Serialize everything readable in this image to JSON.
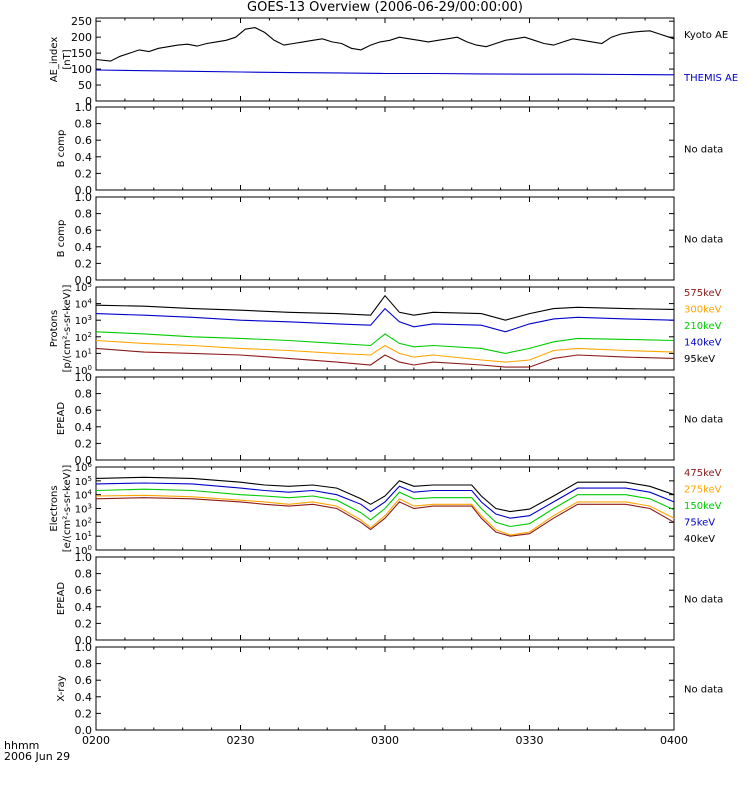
{
  "title": "GOES-13 Overview (2006-06-29/00:00:00)",
  "footer": {
    "line1": "hhmm",
    "line2": "2006 Jun 29"
  },
  "x_axis": {
    "range": [
      0,
      120
    ],
    "ticks": [
      {
        "value": 0,
        "label": "0200"
      },
      {
        "value": 30,
        "label": "0230"
      },
      {
        "value": 60,
        "label": "0300"
      },
      {
        "value": 90,
        "label": "0330"
      },
      {
        "value": 120,
        "label": "0400"
      }
    ]
  },
  "chart_data": [
    {
      "type": "line",
      "ylabel": "AE_index\n[nT]",
      "ylim": [
        0,
        260
      ],
      "yticks": [
        0,
        50,
        100,
        150,
        200,
        250
      ],
      "ytick_labels": [
        "0",
        "50",
        "100",
        "150",
        "200",
        "250"
      ],
      "series": [
        {
          "name": "Kyoto AE",
          "color": "#000000",
          "x": [
            0,
            3,
            5,
            7,
            9,
            11,
            13,
            15,
            17,
            19,
            21,
            23,
            25,
            27,
            29,
            31,
            33,
            35,
            37,
            39,
            41,
            43,
            45,
            47,
            49,
            51,
            53,
            55,
            57,
            59,
            61,
            63,
            65,
            67,
            69,
            71,
            73,
            75,
            77,
            79,
            81,
            83,
            85,
            87,
            89,
            91,
            93,
            95,
            97,
            99,
            101,
            103,
            105,
            107,
            109,
            111,
            113,
            115,
            117,
            119,
            120
          ],
          "y": [
            130,
            125,
            140,
            150,
            160,
            155,
            165,
            170,
            175,
            178,
            172,
            180,
            185,
            190,
            200,
            225,
            230,
            215,
            190,
            175,
            180,
            185,
            190,
            195,
            185,
            180,
            165,
            160,
            175,
            185,
            190,
            200,
            195,
            190,
            185,
            190,
            195,
            200,
            185,
            175,
            170,
            180,
            190,
            195,
            200,
            190,
            180,
            175,
            185,
            195,
            190,
            185,
            180,
            200,
            210,
            215,
            218,
            220,
            210,
            200,
            195
          ]
        },
        {
          "name": "THEMIS AE",
          "color": "#0000cc",
          "x": [
            0,
            10,
            20,
            30,
            40,
            50,
            60,
            70,
            80,
            90,
            100,
            110,
            120
          ],
          "y": [
            97,
            95,
            93,
            91,
            89,
            88,
            86,
            86,
            85,
            84,
            84,
            83,
            82
          ]
        }
      ]
    },
    {
      "type": "line",
      "ylabel": "B comp",
      "ylim": [
        0,
        1
      ],
      "yticks": [
        0,
        0.2,
        0.4,
        0.6,
        0.8,
        1.0
      ],
      "ytick_labels": [
        "0.0",
        "0.2",
        "0.4",
        "0.6",
        "0.8",
        "1.0"
      ],
      "no_data_label": "No data",
      "series": []
    },
    {
      "type": "line",
      "ylabel": "B comp",
      "ylim": [
        0,
        1
      ],
      "yticks": [
        0,
        0.2,
        0.4,
        0.6,
        0.8,
        1.0
      ],
      "ytick_labels": [
        "0.0",
        "0.2",
        "0.4",
        "0.6",
        "0.8",
        "1.0"
      ],
      "no_data_label": "No data",
      "series": []
    },
    {
      "type": "line",
      "ylabel": "Protons\n[p/(cm²-s-sr-keV)]",
      "log": true,
      "ylim": [
        1,
        100000
      ],
      "ytick_exponents": [
        0,
        1,
        2,
        3,
        4,
        5
      ],
      "series": [
        {
          "name": "575keV",
          "color": "#8b1a1a",
          "x": [
            0,
            10,
            20,
            30,
            40,
            50,
            57,
            60,
            63,
            66,
            70,
            80,
            85,
            90,
            95,
            100,
            110,
            120
          ],
          "y": [
            20,
            12,
            10,
            8,
            5,
            3,
            2,
            8,
            3,
            2,
            3,
            2,
            1.5,
            1.5,
            5,
            8,
            6,
            5
          ]
        },
        {
          "name": "300keV",
          "color": "#ffa500",
          "x": [
            0,
            10,
            20,
            30,
            40,
            50,
            57,
            60,
            63,
            66,
            70,
            80,
            85,
            90,
            95,
            100,
            110,
            120
          ],
          "y": [
            60,
            40,
            30,
            20,
            15,
            10,
            8,
            30,
            10,
            6,
            8,
            4,
            3,
            4,
            15,
            20,
            15,
            12
          ]
        },
        {
          "name": "210keV",
          "color": "#00cc00",
          "x": [
            0,
            10,
            20,
            30,
            40,
            50,
            57,
            60,
            63,
            66,
            70,
            80,
            85,
            90,
            95,
            100,
            110,
            120
          ],
          "y": [
            200,
            150,
            100,
            80,
            60,
            40,
            30,
            150,
            40,
            25,
            30,
            20,
            10,
            20,
            50,
            80,
            70,
            60
          ]
        },
        {
          "name": "140keV",
          "color": "#0000cc",
          "x": [
            0,
            10,
            20,
            30,
            40,
            50,
            57,
            60,
            63,
            66,
            70,
            80,
            85,
            90,
            95,
            100,
            110,
            120
          ],
          "y": [
            2500,
            2000,
            1500,
            1000,
            800,
            600,
            500,
            5000,
            800,
            400,
            600,
            500,
            200,
            600,
            1200,
            1500,
            1200,
            1000
          ]
        },
        {
          "name": "95keV",
          "color": "#000000",
          "x": [
            0,
            10,
            20,
            30,
            40,
            50,
            57,
            60,
            63,
            66,
            70,
            80,
            85,
            90,
            95,
            100,
            110,
            120
          ],
          "y": [
            8000,
            7000,
            5000,
            4000,
            3000,
            2500,
            2000,
            30000,
            3000,
            2000,
            3000,
            2500,
            1000,
            2500,
            5000,
            6000,
            5000,
            4500
          ]
        }
      ]
    },
    {
      "type": "line",
      "ylabel": "EPEAD",
      "ylim": [
        0,
        1
      ],
      "yticks": [
        0,
        0.2,
        0.4,
        0.6,
        0.8,
        1.0
      ],
      "ytick_labels": [
        "0.0",
        "0.2",
        "0.4",
        "0.6",
        "0.8",
        "1.0"
      ],
      "no_data_label": "No data",
      "series": []
    },
    {
      "type": "line",
      "ylabel": "Electrons\n[e/(cm²-s-sr-keV)]",
      "log": true,
      "ylim": [
        1,
        1000000
      ],
      "ytick_exponents": [
        0,
        1,
        2,
        3,
        4,
        5,
        6
      ],
      "series": [
        {
          "name": "475keV",
          "color": "#8b1a1a",
          "x": [
            0,
            10,
            20,
            30,
            35,
            40,
            45,
            50,
            55,
            57,
            60,
            63,
            66,
            70,
            78,
            80,
            83,
            86,
            90,
            95,
            100,
            110,
            115,
            120
          ],
          "y": [
            5000,
            6000,
            5000,
            3000,
            2000,
            1500,
            2000,
            1000,
            100,
            30,
            200,
            3000,
            1000,
            1500,
            1500,
            200,
            20,
            10,
            15,
            200,
            2000,
            2000,
            1000,
            100
          ]
        },
        {
          "name": "275keV",
          "color": "#ffa500",
          "x": [
            0,
            10,
            20,
            30,
            35,
            40,
            45,
            50,
            55,
            57,
            60,
            63,
            66,
            70,
            78,
            80,
            83,
            86,
            90,
            95,
            100,
            110,
            115,
            120
          ],
          "y": [
            8000,
            9000,
            7000,
            4000,
            3000,
            2000,
            3000,
            1500,
            150,
            40,
            300,
            5000,
            1500,
            2000,
            2000,
            300,
            30,
            12,
            20,
            300,
            3000,
            3000,
            1500,
            200
          ]
        },
        {
          "name": "150keV",
          "color": "#00cc00",
          "x": [
            0,
            10,
            20,
            30,
            35,
            40,
            45,
            50,
            55,
            57,
            60,
            63,
            66,
            70,
            78,
            80,
            83,
            86,
            90,
            95,
            100,
            110,
            115,
            120
          ],
          "y": [
            20000,
            25000,
            20000,
            10000,
            8000,
            6000,
            8000,
            4000,
            500,
            150,
            1000,
            15000,
            5000,
            6000,
            6000,
            1000,
            100,
            50,
            80,
            1000,
            10000,
            10000,
            5000,
            800
          ]
        },
        {
          "name": "75keV",
          "color": "#0000cc",
          "x": [
            0,
            10,
            20,
            30,
            35,
            40,
            45,
            50,
            55,
            57,
            60,
            63,
            66,
            70,
            78,
            80,
            83,
            86,
            90,
            95,
            100,
            110,
            115,
            120
          ],
          "y": [
            60000,
            70000,
            60000,
            30000,
            20000,
            15000,
            20000,
            10000,
            2000,
            600,
            3000,
            40000,
            15000,
            20000,
            20000,
            3000,
            400,
            200,
            300,
            3000,
            30000,
            30000,
            15000,
            3000
          ]
        },
        {
          "name": "40keV",
          "color": "#000000",
          "x": [
            0,
            10,
            20,
            30,
            35,
            40,
            45,
            50,
            55,
            57,
            60,
            63,
            66,
            70,
            78,
            80,
            83,
            86,
            90,
            95,
            100,
            110,
            115,
            120
          ],
          "y": [
            150000,
            180000,
            150000,
            80000,
            50000,
            40000,
            50000,
            30000,
            5000,
            2000,
            8000,
            100000,
            40000,
            50000,
            50000,
            8000,
            1000,
            600,
            900,
            8000,
            80000,
            80000,
            40000,
            10000
          ]
        }
      ]
    },
    {
      "type": "line",
      "ylabel": "EPEAD",
      "ylim": [
        0,
        1
      ],
      "yticks": [
        0,
        0.2,
        0.4,
        0.6,
        0.8,
        1.0
      ],
      "ytick_labels": [
        "0.0",
        "0.2",
        "0.4",
        "0.6",
        "0.8",
        "1.0"
      ],
      "no_data_label": "No data",
      "series": []
    },
    {
      "type": "line",
      "ylabel": "X-ray",
      "ylim": [
        0,
        1
      ],
      "yticks": [
        0,
        0.2,
        0.4,
        0.6,
        0.8,
        1.0
      ],
      "ytick_labels": [
        "0.0",
        "0.2",
        "0.4",
        "0.6",
        "0.8",
        "1.0"
      ],
      "no_data_label": "No data",
      "series": []
    }
  ]
}
